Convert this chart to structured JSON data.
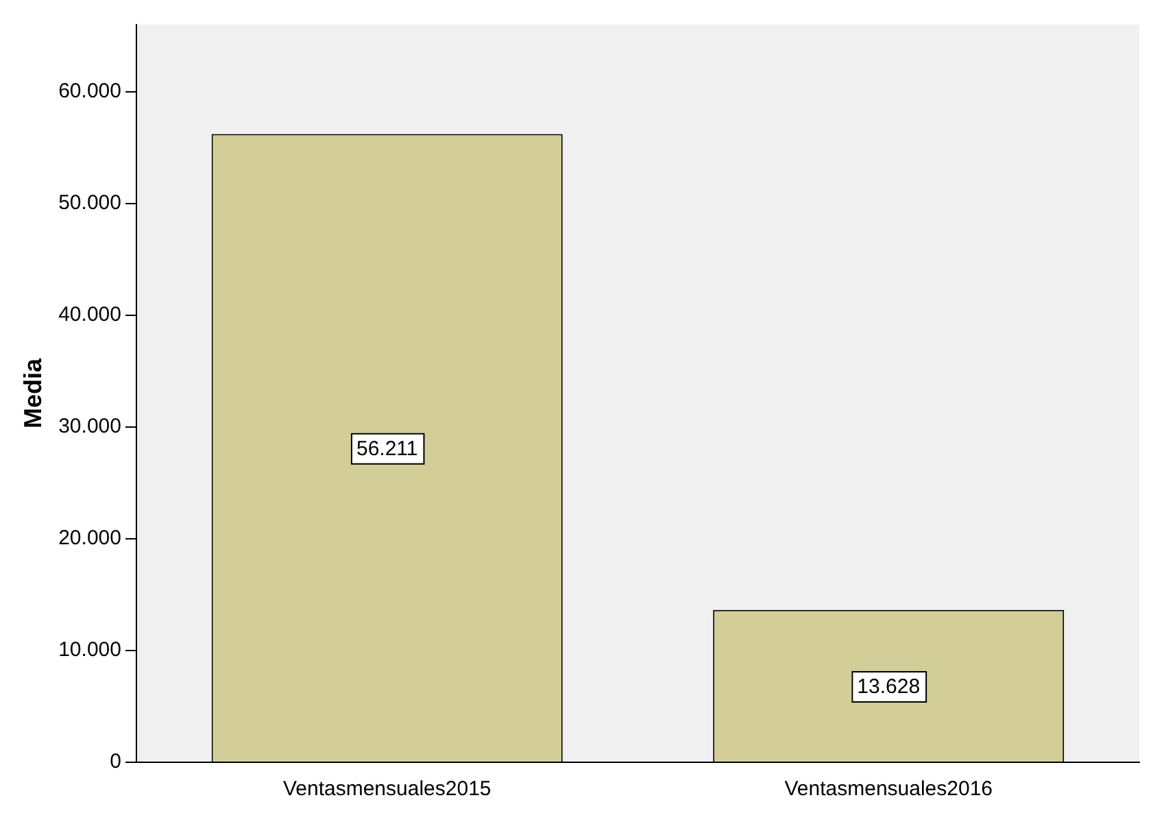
{
  "chart_data": {
    "type": "bar",
    "ylabel": "Media",
    "categories": [
      "Ventasmensuales2015",
      "Ventasmensuales2016"
    ],
    "values": [
      56211,
      13628
    ],
    "color": "#d3ce98",
    "value_labels": [
      "56.211",
      "13.628"
    ],
    "ylim": [
      0,
      66000
    ],
    "yticks": [
      {
        "value": 0,
        "label": "0"
      },
      {
        "value": 10000,
        "label": "10.000"
      },
      {
        "value": 20000,
        "label": "20.000"
      },
      {
        "value": 30000,
        "label": "30.000"
      },
      {
        "value": 40000,
        "label": "40.000"
      },
      {
        "value": 50000,
        "label": "50.000"
      },
      {
        "value": 60000,
        "label": "60.000"
      }
    ],
    "grid": false,
    "legend": false
  }
}
